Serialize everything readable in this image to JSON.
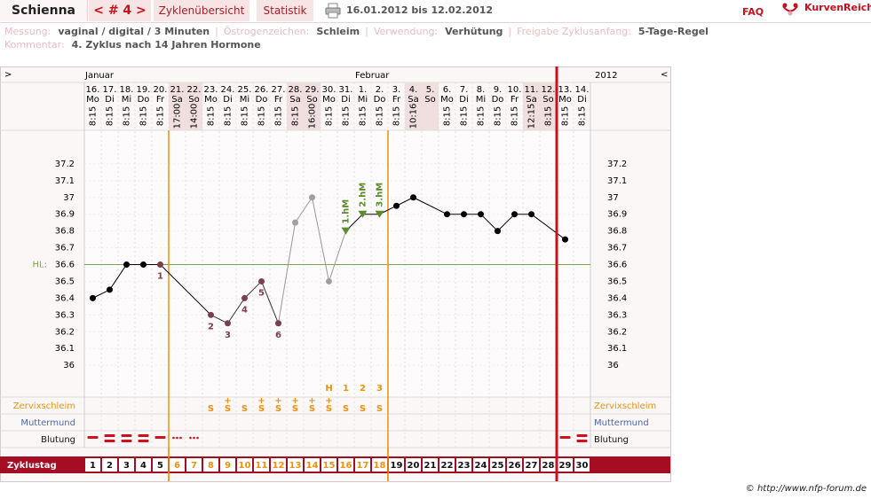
{
  "header": {
    "name": "Schienna",
    "cycle_nav": "< # 4 >",
    "tabs": [
      "Zyklenübersicht",
      "Statistik"
    ],
    "date_range": "16.01.2012 bis 12.02.2012",
    "faq": "FAQ",
    "logo": "KurvenReich"
  },
  "info": {
    "rows": [
      [
        {
          "label": "Messung:",
          "value": "vaginal / digital / 3 Minuten"
        },
        {
          "label": "Östrogenzeichen:",
          "value": "Schleim"
        },
        {
          "label": "Verwendung:",
          "value": "Verhütung"
        },
        {
          "label": "Freigabe Zyklusanfang:",
          "value": "5-Tage-Regel"
        }
      ],
      [
        {
          "label": "Kommentar:",
          "value": "4. Zyklus nach 14 Jahren Hormone"
        }
      ]
    ]
  },
  "chart_data": {
    "type": "line",
    "nav_left": ">",
    "nav_right": "<",
    "year": "2012",
    "month_labels": [
      "Januar",
      null,
      null,
      null,
      null,
      null,
      null,
      null,
      null,
      null,
      null,
      null,
      null,
      null,
      null,
      null,
      "Februar",
      null,
      null,
      null,
      null,
      null,
      null,
      null,
      null,
      null,
      null,
      null,
      null,
      null
    ],
    "dates": [
      "16.",
      "17.",
      "18.",
      "19.",
      "20.",
      "21.",
      "22.",
      "23.",
      "24.",
      "25.",
      "26.",
      "27.",
      "28.",
      "29.",
      "30.",
      "31.",
      "1.",
      "2.",
      "3.",
      "4.",
      "5.",
      "6.",
      "7.",
      "8.",
      "9.",
      "10.",
      "11.",
      "12.",
      "13.",
      "14."
    ],
    "weekdays": [
      "Mo",
      "Di",
      "Mi",
      "Do",
      "Fr",
      "Sa",
      "So",
      "Mo",
      "Di",
      "Mi",
      "Do",
      "Fr",
      "Sa",
      "So",
      "Mo",
      "Di",
      "Mi",
      "Do",
      "Fr",
      "Sa",
      "So",
      "Mo",
      "Di",
      "Mi",
      "Do",
      "Fr",
      "Sa",
      "So",
      "Mo",
      "Di"
    ],
    "times": [
      "8:15",
      "8:15",
      "8:15",
      "8:15",
      "8:15",
      "17:00",
      "14:00",
      "8:15",
      "8:15",
      "8:15",
      "8:15",
      "8:15",
      "8:15",
      "16:00",
      "8:15",
      "8:15",
      "8:15",
      "8:15",
      "8:15",
      "10:16",
      null,
      "8:15",
      "8:15",
      "8:15",
      "8:15",
      "8:15",
      "12:15",
      "8:15",
      "8:15",
      "8:15"
    ],
    "shaded": [
      5,
      6,
      12,
      13,
      19,
      20,
      26,
      27
    ],
    "values": [
      36.4,
      36.45,
      36.6,
      36.6,
      36.6,
      null,
      null,
      36.3,
      36.25,
      36.4,
      36.5,
      36.25,
      36.85,
      37,
      36.5,
      36.8,
      36.9,
      36.9,
      36.95,
      37,
      null,
      36.9,
      36.9,
      36.9,
      36.8,
      36.9,
      36.9,
      null,
      36.75,
      null
    ],
    "point_colors": [
      "#000",
      "#000",
      "#000",
      "#000",
      "#7b3f4c",
      null,
      null,
      "#7b3f4c",
      "#7b3f4c",
      "#7b3f4c",
      "#7b3f4c",
      "#7b3f4c",
      "#a0a0a0",
      "#a0a0a0",
      "#a0a0a0",
      "#5c8c2c",
      "#5c8c2c",
      "#5c8c2c",
      "#000",
      "#000",
      null,
      "#000",
      "#000",
      "#000",
      "#000",
      "#000",
      "#000",
      null,
      "#000",
      null
    ],
    "segment_colors": [
      null,
      "#000",
      "#000",
      "#000",
      "#000",
      null,
      null,
      "#000",
      "#333",
      "#333",
      "#333",
      "#333",
      "#999",
      "#999",
      "#999",
      "#999",
      "#000",
      "#000",
      "#000",
      "#000",
      null,
      "#000",
      "#000",
      "#000",
      "#000",
      "#000",
      "#000",
      null,
      "#000",
      null
    ],
    "point_shapes": [
      "circle",
      "circle",
      "circle",
      "circle",
      "circle",
      null,
      null,
      "circle",
      "circle",
      "circle",
      "circle",
      "circle",
      "circle",
      "circle",
      "circle",
      "triangle",
      "triangle",
      "triangle",
      "circle",
      "circle",
      null,
      "circle",
      "circle",
      "circle",
      "circle",
      "circle",
      "circle",
      null,
      "circle",
      null
    ],
    "point_labels": [
      null,
      null,
      null,
      null,
      "1",
      null,
      null,
      "2",
      "3",
      "4",
      "5",
      "6",
      null,
      null,
      null,
      "1.hM",
      "2.hM",
      "3.hM",
      null,
      null,
      null,
      null,
      null,
      null,
      null,
      null,
      null,
      null,
      null,
      null
    ],
    "ylim": [
      35.8,
      37.4
    ],
    "yticks": [
      36,
      36.1,
      36.2,
      36.3,
      36.4,
      36.5,
      36.6,
      36.7,
      36.8,
      36.9,
      37,
      37.1,
      37.2
    ],
    "grid": true,
    "coverline": {
      "label": "HL:",
      "value": 36.6,
      "color": "#7aa84a"
    },
    "phase_lines": [
      5,
      18
    ],
    "phase_color": "#f0900f",
    "cycle_end": 28,
    "cycle_end_color": "#c8101e",
    "peak_labels": [
      null,
      null,
      null,
      null,
      null,
      null,
      null,
      null,
      null,
      null,
      null,
      null,
      null,
      null,
      "H",
      "1",
      "2",
      "3",
      null,
      null,
      null,
      null,
      null,
      null,
      null,
      null,
      null,
      null,
      null,
      null
    ],
    "mucus_label": "Zervixschleim",
    "cervix_label": "Muttermund",
    "bleeding_label": "Blutung",
    "cycleday_label": "Zyklustag",
    "mucus": [
      null,
      null,
      null,
      null,
      null,
      null,
      null,
      "S",
      "S",
      "S",
      "S",
      "S",
      "S",
      "S",
      "S",
      "S",
      "S",
      "S",
      null,
      null,
      null,
      null,
      null,
      null,
      null,
      null,
      null,
      null,
      null,
      null
    ],
    "mucus_plus": [
      null,
      null,
      null,
      null,
      null,
      null,
      null,
      null,
      "+",
      null,
      "+",
      "+",
      "+",
      "+",
      "+",
      null,
      null,
      null,
      null,
      null,
      null,
      null,
      null,
      null,
      null,
      null,
      null,
      null,
      null,
      null
    ],
    "bleeding": [
      2,
      3,
      3,
      3,
      2,
      1,
      1,
      null,
      null,
      null,
      null,
      null,
      null,
      null,
      null,
      null,
      null,
      null,
      null,
      null,
      null,
      null,
      null,
      null,
      null,
      null,
      null,
      null,
      2,
      3
    ],
    "bleeding_color": "#d0101e",
    "cycle_days": [
      1,
      2,
      3,
      4,
      5,
      6,
      7,
      8,
      9,
      10,
      11,
      12,
      13,
      14,
      15,
      16,
      17,
      18,
      19,
      20,
      21,
      22,
      23,
      24,
      25,
      26,
      27,
      28,
      29,
      30
    ]
  },
  "footer": "© http://www.nfp-forum.de"
}
